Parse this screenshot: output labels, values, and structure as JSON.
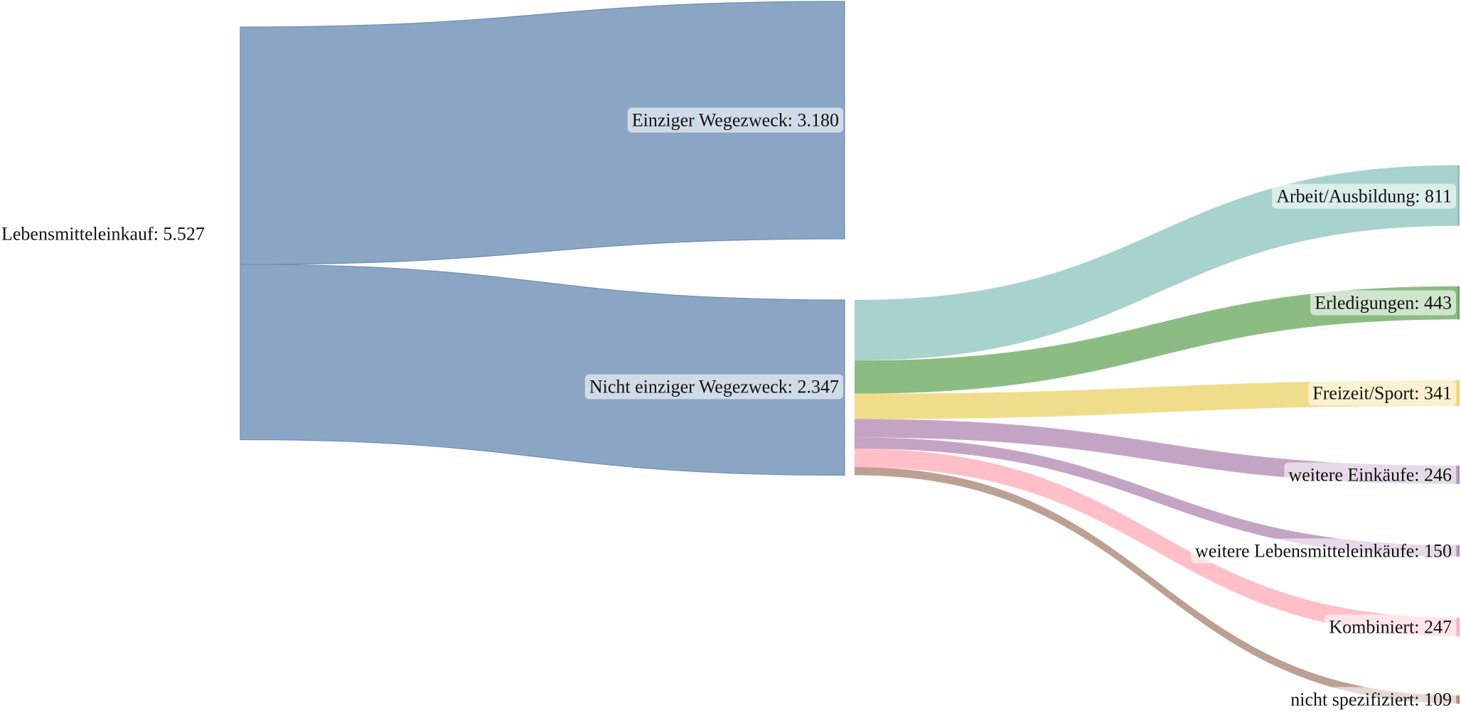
{
  "chart_data": {
    "type": "sankey",
    "title": "",
    "nodes": [
      {
        "id": "root",
        "label": "Lebensmitteleinkauf: 5.527",
        "value": 5527
      },
      {
        "id": "single",
        "label": "Einziger Wegezweck: 3.180",
        "value": 3180
      },
      {
        "id": "multi",
        "label": "Nicht einziger Wegezweck: 2.347",
        "value": 2347
      },
      {
        "id": "arbeit",
        "label": "Arbeit/Ausbildung: 811",
        "value": 811,
        "color": "#8ec5c0"
      },
      {
        "id": "erled",
        "label": "Erledigungen: 443",
        "value": 443,
        "color": "#6aab5f"
      },
      {
        "id": "freizeit",
        "label": "Freizeit/Sport: 341",
        "value": 341,
        "color": "#ecd36a"
      },
      {
        "id": "einkaeufe",
        "label": "weitere Einkäufe: 246",
        "value": 246,
        "color": "#b48bb5"
      },
      {
        "id": "lebensm",
        "label": "weitere Lebensmitteleinkäufe: 150",
        "value": 150,
        "color": "#b48bb5"
      },
      {
        "id": "kombi",
        "label": "Kombiniert: 247",
        "value": 247,
        "color": "#ffadb8"
      },
      {
        "id": "nicht",
        "label": "nicht spezifiziert: 109",
        "value": 109,
        "color": "#a98572"
      }
    ],
    "links": [
      {
        "source": "root",
        "target": "single",
        "value": 3180
      },
      {
        "source": "root",
        "target": "multi",
        "value": 2347
      },
      {
        "source": "multi",
        "target": "arbeit",
        "value": 811
      },
      {
        "source": "multi",
        "target": "erled",
        "value": 443
      },
      {
        "source": "multi",
        "target": "freizeit",
        "value": 341
      },
      {
        "source": "multi",
        "target": "einkaeufe",
        "value": 246
      },
      {
        "source": "multi",
        "target": "lebensm",
        "value": 150
      },
      {
        "source": "multi",
        "target": "kombi",
        "value": 247
      },
      {
        "source": "multi",
        "target": "nicht",
        "value": 109
      }
    ],
    "colors": {
      "primary_flow": "#8aa6c4",
      "primary_stroke": "#6f8fb5",
      "label_background": "#ffffff"
    }
  }
}
